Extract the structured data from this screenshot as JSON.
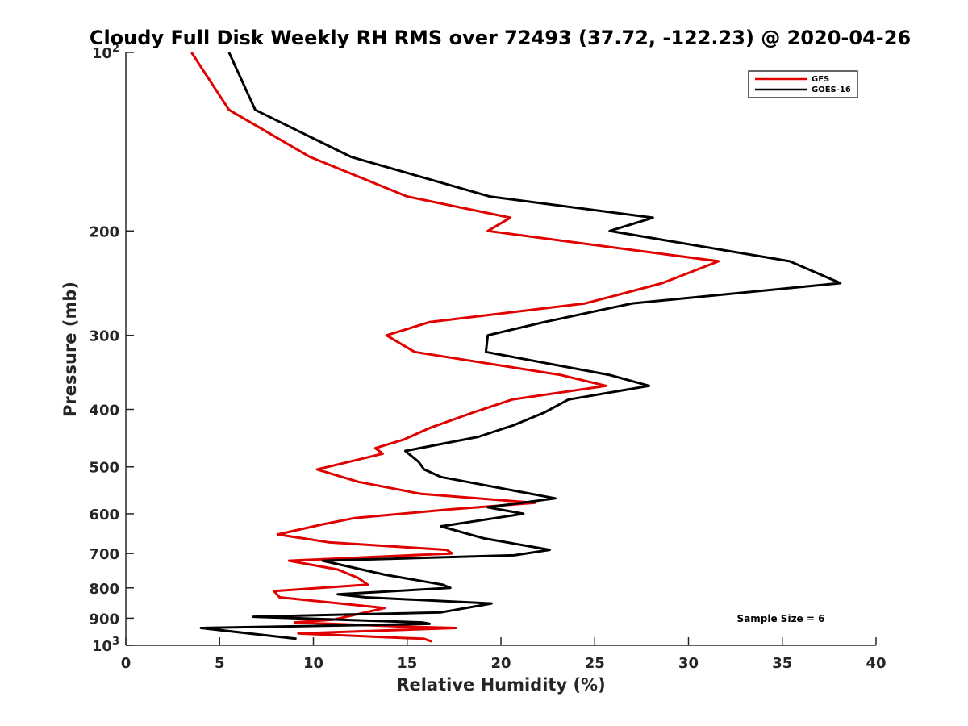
{
  "chart_data": {
    "type": "line",
    "title": "Cloudy Full Disk Weekly RH RMS over 72493 (37.72, -122.23) @ 2020-04-26",
    "xlabel": "Relative Humidity (%)",
    "ylabel": "Pressure (mb)",
    "xlim": [
      0,
      40
    ],
    "ylim": [
      100,
      1000
    ],
    "y_scale": "log",
    "y_reversed": true,
    "grid": false,
    "legend_position": "top-right",
    "x_ticks": [
      "0",
      "5",
      "10",
      "15",
      "20",
      "25",
      "30",
      "35",
      "40"
    ],
    "y_ticks": [
      {
        "value": 100,
        "label": "10",
        "sup": "2"
      },
      {
        "value": 200,
        "label": "200",
        "sup": ""
      },
      {
        "value": 300,
        "label": "300",
        "sup": ""
      },
      {
        "value": 400,
        "label": "400",
        "sup": ""
      },
      {
        "value": 500,
        "label": "500",
        "sup": ""
      },
      {
        "value": 600,
        "label": "600",
        "sup": ""
      },
      {
        "value": 700,
        "label": "700",
        "sup": ""
      },
      {
        "value": 800,
        "label": "800",
        "sup": ""
      },
      {
        "value": 900,
        "label": "900",
        "sup": ""
      },
      {
        "value": 1000,
        "label": "10",
        "sup": "3"
      }
    ],
    "annotation": "Sample Size = 6",
    "series": [
      {
        "name": "GFS",
        "color": "#e00000",
        "points": [
          [
            3.5,
            100
          ],
          [
            5.5,
            125
          ],
          [
            9.8,
            150
          ],
          [
            15.0,
            175
          ],
          [
            20.5,
            190
          ],
          [
            19.3,
            200
          ],
          [
            31.6,
            225
          ],
          [
            28.6,
            245
          ],
          [
            24.5,
            265
          ],
          [
            16.2,
            285
          ],
          [
            13.9,
            300
          ],
          [
            15.4,
            320
          ],
          [
            23.2,
            350
          ],
          [
            25.6,
            365
          ],
          [
            20.6,
            385
          ],
          [
            18.5,
            405
          ],
          [
            16.2,
            430
          ],
          [
            14.8,
            450
          ],
          [
            13.3,
            465
          ],
          [
            13.7,
            475
          ],
          [
            10.2,
            505
          ],
          [
            12.4,
            530
          ],
          [
            15.7,
            555
          ],
          [
            21.8,
            575
          ],
          [
            17.2,
            590
          ],
          [
            12.2,
            610
          ],
          [
            10.5,
            625
          ],
          [
            8.1,
            650
          ],
          [
            10.8,
            670
          ],
          [
            17.1,
            690
          ],
          [
            17.4,
            700
          ],
          [
            8.7,
            720
          ],
          [
            11.3,
            745
          ],
          [
            12.4,
            770
          ],
          [
            12.9,
            790
          ],
          [
            7.9,
            810
          ],
          [
            8.2,
            830
          ],
          [
            13.8,
            865
          ],
          [
            12.1,
            890
          ],
          [
            11.1,
            905
          ],
          [
            9.0,
            915
          ],
          [
            14.8,
            930
          ],
          [
            17.6,
            935
          ],
          [
            9.2,
            955
          ],
          [
            15.9,
            975
          ],
          [
            16.3,
            985
          ]
        ]
      },
      {
        "name": "GOES-16",
        "color": "#000000",
        "points": [
          [
            5.5,
            100
          ],
          [
            6.9,
            125
          ],
          [
            12.0,
            150
          ],
          [
            19.4,
            175
          ],
          [
            28.1,
            190
          ],
          [
            25.8,
            200
          ],
          [
            35.4,
            225
          ],
          [
            38.1,
            245
          ],
          [
            27.0,
            265
          ],
          [
            22.3,
            285
          ],
          [
            19.3,
            300
          ],
          [
            19.2,
            320
          ],
          [
            25.8,
            350
          ],
          [
            27.9,
            365
          ],
          [
            23.6,
            385
          ],
          [
            22.3,
            405
          ],
          [
            20.7,
            425
          ],
          [
            18.8,
            445
          ],
          [
            14.9,
            470
          ],
          [
            15.6,
            490
          ],
          [
            15.9,
            505
          ],
          [
            16.8,
            520
          ],
          [
            22.9,
            565
          ],
          [
            19.3,
            585
          ],
          [
            21.2,
            600
          ],
          [
            16.8,
            630
          ],
          [
            19.1,
            660
          ],
          [
            22.6,
            690
          ],
          [
            20.7,
            705
          ],
          [
            10.5,
            720
          ],
          [
            13.8,
            760
          ],
          [
            16.9,
            790
          ],
          [
            17.3,
            800
          ],
          [
            11.3,
            820
          ],
          [
            12.8,
            830
          ],
          [
            19.5,
            850
          ],
          [
            16.8,
            880
          ],
          [
            6.8,
            895
          ],
          [
            15.8,
            915
          ],
          [
            16.2,
            920
          ],
          [
            4.0,
            935
          ],
          [
            9.1,
            975
          ]
        ]
      }
    ]
  }
}
